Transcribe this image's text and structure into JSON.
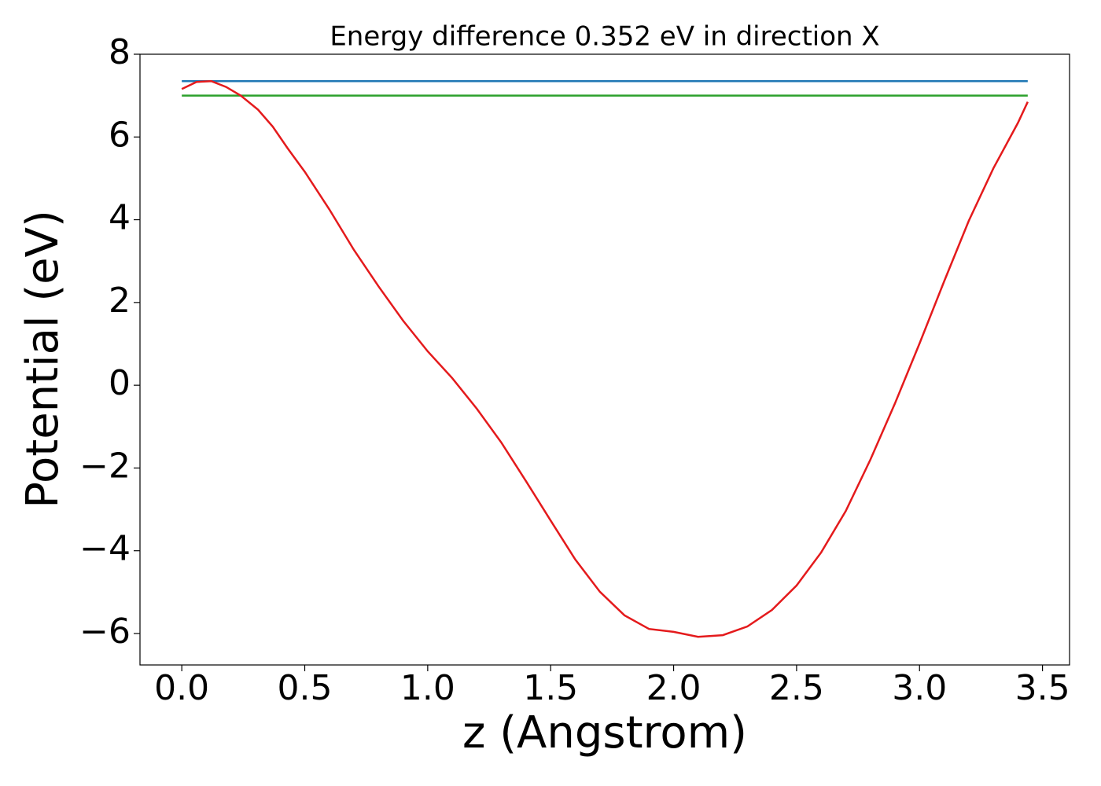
{
  "chart_data": {
    "type": "line",
    "title": "Energy difference 0.352 eV in direction X",
    "xlabel": "z (Angstrom)",
    "ylabel": "Potential (eV)",
    "xlim": [
      -0.17,
      3.61
    ],
    "ylim": [
      -6.76,
      8.0
    ],
    "xticks": [
      {
        "value": 0,
        "label": "0.0"
      },
      0.5,
      {
        "value": 1,
        "label": "1.0"
      },
      1.5,
      {
        "value": 2,
        "label": "2.0"
      },
      2.5,
      {
        "value": 3,
        "label": "3.0"
      },
      3.5
    ],
    "yticks": [
      {
        "value": -6,
        "label": "−6"
      },
      {
        "value": -4,
        "label": "−4"
      },
      {
        "value": -2,
        "label": "−2"
      },
      0,
      2,
      4,
      6,
      8
    ],
    "grid": false,
    "series": [
      {
        "color": "#1f77b4",
        "x": [
          0,
          3.44
        ],
        "values": [
          7.35,
          7.35
        ]
      },
      {
        "color": "#2ca02c",
        "x": [
          0,
          3.44
        ],
        "values": [
          7.0,
          7.0
        ]
      },
      {
        "color": "#e41a1c",
        "x": [
          0,
          0.06,
          0.12,
          0.18,
          0.24,
          0.31,
          0.37,
          0.43,
          0.5,
          0.6,
          0.7,
          0.8,
          0.9,
          1.0,
          1.1,
          1.2,
          1.3,
          1.4,
          1.5,
          1.6,
          1.7,
          1.8,
          1.9,
          2.0,
          2.1,
          2.2,
          2.3,
          2.4,
          2.5,
          2.6,
          2.7,
          2.8,
          2.9,
          3.0,
          3.1,
          3.2,
          3.3,
          3.4,
          3.44
        ],
        "values": [
          7.16,
          7.33,
          7.35,
          7.21,
          7.0,
          6.66,
          6.25,
          5.73,
          5.16,
          4.25,
          3.27,
          2.39,
          1.56,
          0.82,
          0.17,
          -0.57,
          -1.39,
          -2.32,
          -3.27,
          -4.21,
          -4.99,
          -5.56,
          -5.89,
          -5.96,
          -6.08,
          -6.04,
          -5.83,
          -5.43,
          -4.84,
          -4.04,
          -3.04,
          -1.8,
          -0.44,
          1.01,
          2.51,
          3.97,
          5.24,
          6.34,
          6.85
        ]
      }
    ]
  }
}
